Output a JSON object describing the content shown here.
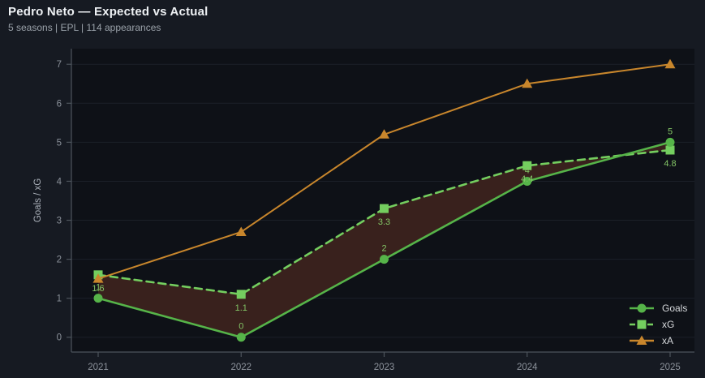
{
  "header": {
    "title": "Pedro Neto — Expected vs Actual",
    "subtitle": "5 seasons | EPL | 114 appearances"
  },
  "chart_data": {
    "type": "line",
    "x": [
      2021,
      2022,
      2023,
      2024,
      2025
    ],
    "series": [
      {
        "name": "Goals",
        "values": [
          1,
          0,
          2,
          4,
          5
        ],
        "labels": [
          "1",
          "0",
          "2",
          "4",
          "5"
        ],
        "label_side": "above",
        "color": "#56b449",
        "line_style": "solid",
        "marker": "circle"
      },
      {
        "name": "xG",
        "values": [
          1.6,
          1.1,
          3.3,
          4.4,
          4.8
        ],
        "labels": [
          "1.6",
          "1.1",
          "3.3",
          "4.4",
          "4.8"
        ],
        "label_side": "below",
        "color": "#74ce5f",
        "line_style": "dashed",
        "marker": "square"
      },
      {
        "name": "xA",
        "values": [
          1.5,
          2.7,
          5.2,
          6.5,
          7.0
        ],
        "labels": [],
        "label_side": "none",
        "color": "#c8862c",
        "line_style": "solid",
        "marker": "triangle"
      }
    ],
    "fill_between": {
      "upper": "xG",
      "lower": "Goals",
      "color": "#39211d"
    },
    "title": "Pedro Neto — Expected vs Actual",
    "xlabel": "",
    "ylabel": "Goals / xG",
    "yticks": [
      0,
      1,
      2,
      3,
      4,
      5,
      6,
      7
    ],
    "ylim": [
      -0.38,
      7.4
    ],
    "grid": true,
    "legend_position": "lower right",
    "legend_entries": [
      "Goals",
      "xG",
      "xA"
    ]
  },
  "colors": {
    "page_bg": "#161a22",
    "plot_bg": "#0e1117",
    "grid": "#1b2028",
    "spine": "#4d545c",
    "tick_label": "#8b919a",
    "axis_label": "#a9afb8",
    "data_label": "#83c566",
    "legend_text": "#d5d8db",
    "title": "#eef1f4",
    "subtitle": "#9aa1a9"
  }
}
